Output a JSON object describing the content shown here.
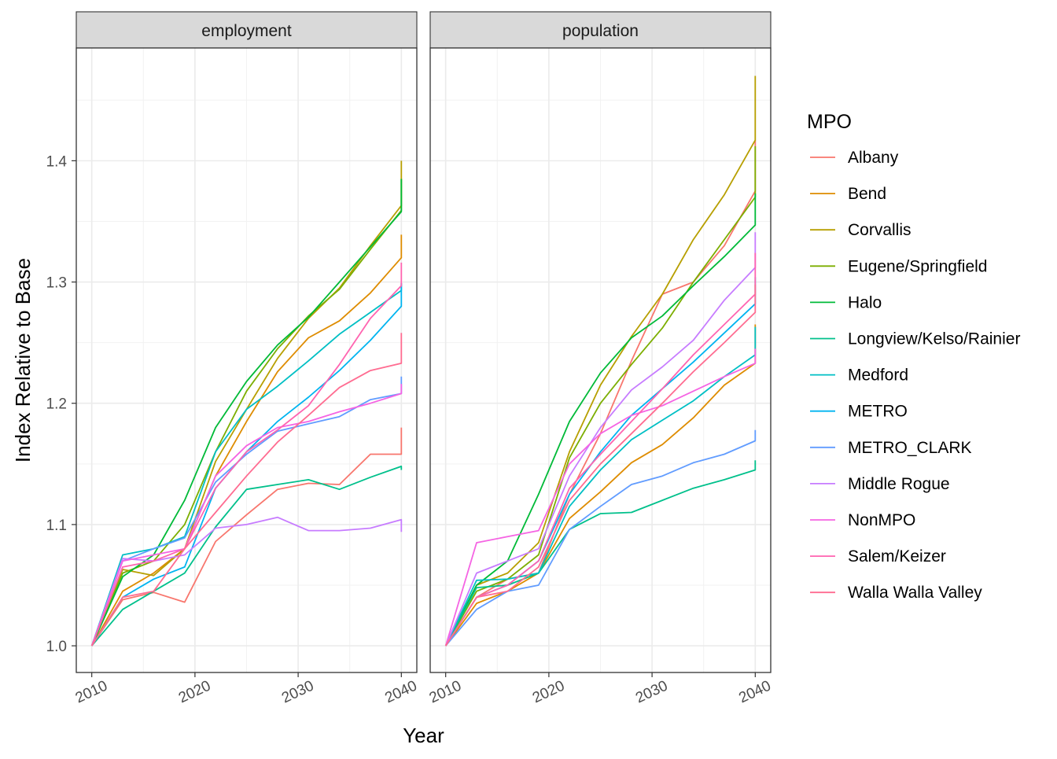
{
  "chart_data": {
    "type": "line",
    "facets": [
      {
        "label": "employment",
        "series": [
          {
            "name": "Albany",
            "values": [
              1.0,
              1.038,
              1.044,
              1.036,
              1.086,
              1.108,
              1.129,
              1.134,
              1.133,
              1.158,
              1.158,
              1.18
            ]
          },
          {
            "name": "Bend",
            "values": [
              1.0,
              1.045,
              1.06,
              1.08,
              1.14,
              1.185,
              1.226,
              1.254,
              1.268,
              1.291,
              1.32,
              1.339
            ]
          },
          {
            "name": "Corvallis",
            "values": [
              1.0,
              1.063,
              1.058,
              1.08,
              1.152,
              1.195,
              1.237,
              1.27,
              1.295,
              1.33,
              1.363,
              1.4
            ]
          },
          {
            "name": "Eugene/Springfield",
            "values": [
              1.0,
              1.06,
              1.07,
              1.1,
              1.16,
              1.21,
              1.245,
              1.272,
              1.294,
              1.327,
              1.359,
              1.385
            ]
          },
          {
            "name": "Halo",
            "values": [
              1.0,
              1.057,
              1.075,
              1.12,
              1.18,
              1.218,
              1.248,
              1.271,
              1.3,
              1.329,
              1.358,
              1.385
            ]
          },
          {
            "name": "Longview/Kelso/Rainier",
            "values": [
              1.0,
              1.03,
              1.045,
              1.06,
              1.098,
              1.129,
              1.133,
              1.137,
              1.129,
              1.139,
              1.148,
              1.145
            ]
          },
          {
            "name": "Medford",
            "values": [
              1.0,
              1.075,
              1.08,
              1.09,
              1.16,
              1.195,
              1.214,
              1.235,
              1.257,
              1.275,
              1.293,
              1.299
            ]
          },
          {
            "name": "METRO",
            "values": [
              1.0,
              1.04,
              1.055,
              1.065,
              1.13,
              1.16,
              1.185,
              1.205,
              1.227,
              1.252,
              1.28,
              1.299
            ]
          },
          {
            "name": "METRO_CLARK",
            "values": [
              1.0,
              1.07,
              1.08,
              1.089,
              1.135,
              1.158,
              1.177,
              1.183,
              1.189,
              1.203,
              1.208,
              1.222
            ]
          },
          {
            "name": "Middle Rogue",
            "values": [
              1.0,
              1.072,
              1.07,
              1.075,
              1.097,
              1.1,
              1.106,
              1.095,
              1.095,
              1.097,
              1.104,
              1.094
            ]
          },
          {
            "name": "NonMPO",
            "values": [
              1.0,
              1.07,
              1.075,
              1.08,
              1.14,
              1.165,
              1.18,
              1.185,
              1.193,
              1.2,
              1.208,
              1.216
            ]
          },
          {
            "name": "Salem/Keizer",
            "values": [
              1.0,
              1.065,
              1.07,
              1.08,
              1.13,
              1.16,
              1.178,
              1.198,
              1.232,
              1.27,
              1.297,
              1.316
            ]
          },
          {
            "name": "Walla Walla Valley",
            "values": [
              1.0,
              1.04,
              1.045,
              1.08,
              1.11,
              1.14,
              1.168,
              1.19,
              1.213,
              1.227,
              1.233,
              1.258
            ]
          }
        ]
      },
      {
        "label": "population",
        "series": [
          {
            "name": "Albany",
            "values": [
              1.0,
              1.04,
              1.055,
              1.06,
              1.125,
              1.175,
              1.235,
              1.29,
              1.3,
              1.33,
              1.375,
              1.417
            ]
          },
          {
            "name": "Bend",
            "values": [
              1.0,
              1.035,
              1.045,
              1.06,
              1.105,
              1.127,
              1.151,
              1.166,
              1.188,
              1.215,
              1.233,
              1.265
            ]
          },
          {
            "name": "Corvallis",
            "values": [
              1.0,
              1.05,
              1.06,
              1.085,
              1.16,
              1.215,
              1.255,
              1.29,
              1.335,
              1.372,
              1.417,
              1.47
            ]
          },
          {
            "name": "Eugene/Springfield",
            "values": [
              1.0,
              1.045,
              1.055,
              1.075,
              1.155,
              1.2,
              1.232,
              1.262,
              1.3,
              1.335,
              1.37,
              1.412
            ]
          },
          {
            "name": "Halo",
            "values": [
              1.0,
              1.05,
              1.07,
              1.125,
              1.185,
              1.225,
              1.254,
              1.272,
              1.297,
              1.321,
              1.347,
              1.373
            ]
          },
          {
            "name": "Longview/Kelso/Rainier",
            "values": [
              1.0,
              1.048,
              1.05,
              1.06,
              1.096,
              1.109,
              1.11,
              1.12,
              1.13,
              1.137,
              1.145,
              1.153
            ]
          },
          {
            "name": "Medford",
            "values": [
              1.0,
              1.054,
              1.055,
              1.06,
              1.115,
              1.145,
              1.17,
              1.186,
              1.202,
              1.222,
              1.24,
              1.263
            ]
          },
          {
            "name": "METRO",
            "values": [
              1.0,
              1.04,
              1.05,
              1.07,
              1.125,
              1.16,
              1.19,
              1.212,
              1.234,
              1.258,
              1.282,
              1.304
            ]
          },
          {
            "name": "METRO_CLARK",
            "values": [
              1.0,
              1.03,
              1.045,
              1.05,
              1.096,
              1.115,
              1.133,
              1.14,
              1.151,
              1.158,
              1.169,
              1.178
            ]
          },
          {
            "name": "Middle Rogue",
            "values": [
              1.0,
              1.06,
              1.07,
              1.08,
              1.14,
              1.18,
              1.211,
              1.23,
              1.252,
              1.285,
              1.312,
              1.341
            ]
          },
          {
            "name": "NonMPO",
            "values": [
              1.0,
              1.085,
              1.09,
              1.095,
              1.15,
              1.175,
              1.19,
              1.198,
              1.21,
              1.222,
              1.233,
              1.245
            ]
          },
          {
            "name": "Salem/Keizer",
            "values": [
              1.0,
              1.04,
              1.05,
              1.07,
              1.13,
              1.158,
              1.185,
              1.212,
              1.24,
              1.265,
              1.29,
              1.324
            ]
          },
          {
            "name": "Walla Walla Valley",
            "values": [
              1.0,
              1.04,
              1.045,
              1.065,
              1.12,
              1.15,
              1.175,
              1.2,
              1.226,
              1.25,
              1.275,
              1.298
            ]
          }
        ]
      }
    ],
    "x": [
      2010,
      2013,
      2016,
      2019,
      2022,
      2025,
      2028,
      2031,
      2034,
      2037,
      2040
    ],
    "x_full": [
      2010,
      2013,
      2016,
      2019,
      2022,
      2025,
      2028,
      2031,
      2034,
      2037,
      2040,
      2040
    ],
    "xlabel": "Year",
    "ylabel": "Index Relative to Base",
    "xticks": [
      2010,
      2020,
      2030,
      2040
    ],
    "yticks": [
      1.0,
      1.1,
      1.2,
      1.3,
      1.4
    ],
    "ytick_labels": [
      "1.0",
      "1.1",
      "1.2",
      "1.3",
      "1.4"
    ],
    "xlim": [
      2008.5,
      2041.5
    ],
    "ylim": [
      0.978,
      1.493
    ],
    "grid": true,
    "legend": {
      "title": "MPO",
      "position": "right",
      "entries": [
        "Albany",
        "Bend",
        "Corvallis",
        "Eugene/Springfield",
        "Halo",
        "Longview/Kelso/Rainier",
        "Medford",
        "METRO",
        "METRO_CLARK",
        "Middle Rogue",
        "NonMPO",
        "Salem/Keizer",
        "Walla Walla Valley"
      ]
    },
    "colors": {
      "Albany": "#F8766D",
      "Bend": "#DE8C00",
      "Corvallis": "#B79F00",
      "Eugene/Springfield": "#7CAE00",
      "Halo": "#00BA38",
      "Longview/Kelso/Rainier": "#00C08B",
      "Medford": "#00BFC4",
      "METRO": "#00B4F0",
      "METRO_CLARK": "#619CFF",
      "Middle Rogue": "#C77CFF",
      "NonMPO": "#F564E3",
      "Salem/Keizer": "#FF64B0",
      "Walla Walla Valley": "#FF6C91"
    }
  }
}
